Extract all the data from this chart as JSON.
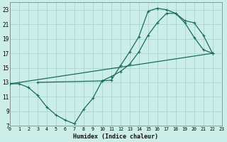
{
  "xlabel": "Humidex (Indice chaleur)",
  "xlim": [
    0,
    23
  ],
  "ylim": [
    7,
    24
  ],
  "yticks": [
    7,
    9,
    11,
    13,
    15,
    17,
    19,
    21,
    23
  ],
  "xticks": [
    0,
    1,
    2,
    3,
    4,
    5,
    6,
    7,
    8,
    9,
    10,
    11,
    12,
    13,
    14,
    15,
    16,
    17,
    18,
    19,
    20,
    21,
    22,
    23
  ],
  "bg_color": "#cceee8",
  "grid_color": "#aad4cc",
  "line_color": "#1a6b60",
  "series": [
    {
      "x": [
        0,
        1,
        2,
        3,
        4,
        5,
        6,
        7,
        8,
        9,
        10,
        11,
        12,
        13,
        14,
        15,
        16,
        17,
        18,
        19,
        20,
        21,
        22
      ],
      "y": [
        12.8,
        12.8,
        12.3,
        11.2,
        9.6,
        8.5,
        7.8,
        7.3,
        9.3,
        10.8,
        13.2,
        13.3,
        15.3,
        17.2,
        19.3,
        22.8,
        23.2,
        23.0,
        22.5,
        21.2,
        19.2,
        17.5,
        17.0
      ]
    },
    {
      "x": [
        3,
        10,
        11,
        12,
        13,
        14,
        15,
        16,
        17,
        18,
        19,
        20,
        21,
        22
      ],
      "y": [
        13.0,
        13.2,
        13.8,
        14.5,
        15.5,
        17.2,
        19.5,
        21.2,
        22.5,
        22.5,
        21.5,
        21.2,
        19.5,
        17.0
      ]
    },
    {
      "x": [
        0,
        22
      ],
      "y": [
        12.8,
        17.0
      ]
    }
  ]
}
